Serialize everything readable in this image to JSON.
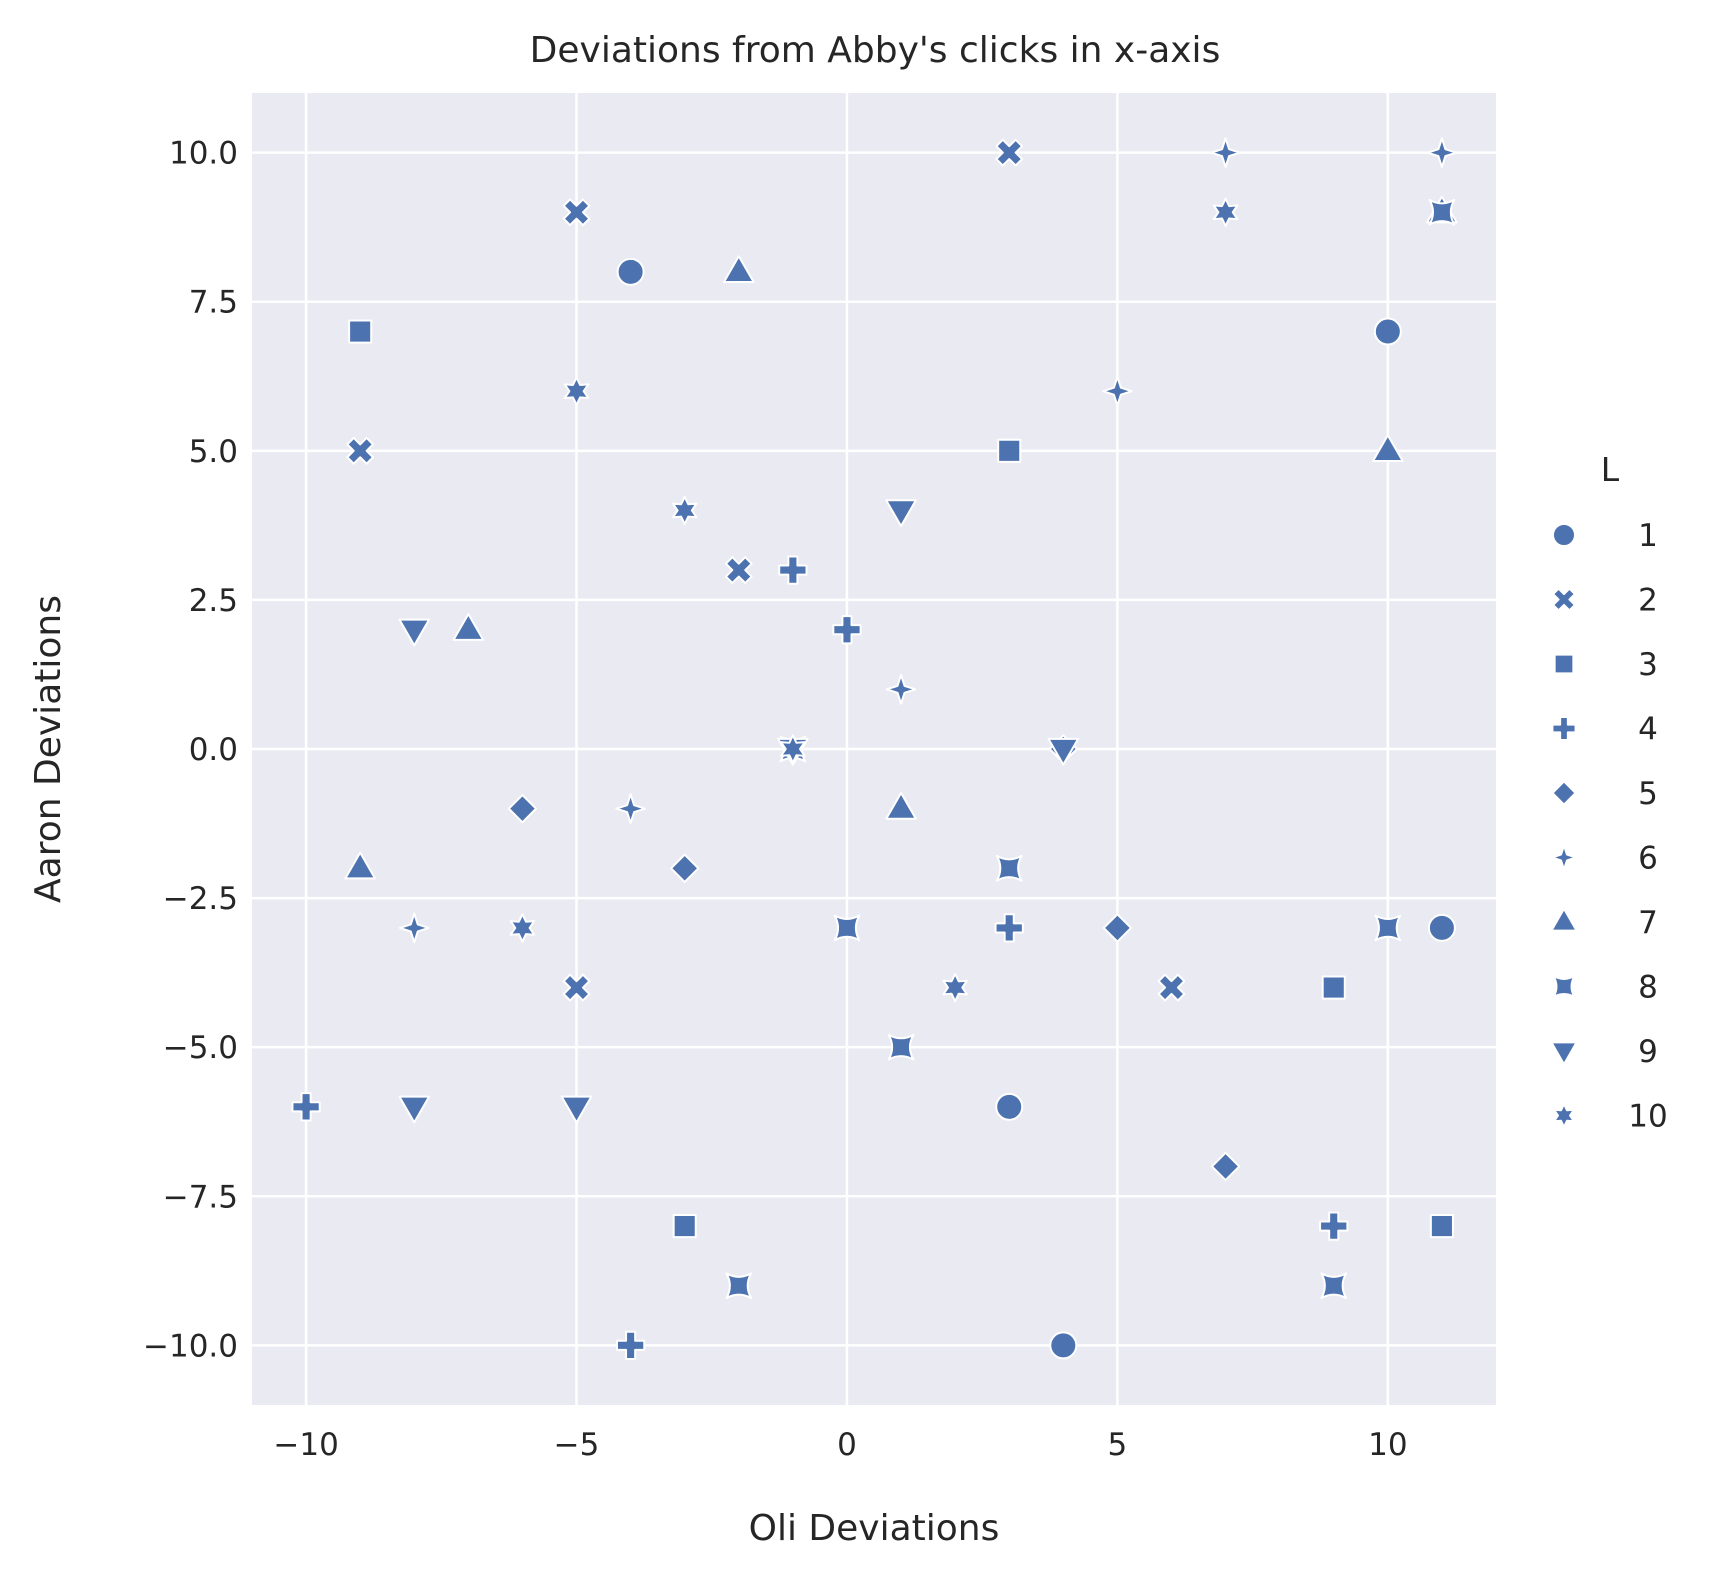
{
  "colors": {
    "background": "#eaeaf2",
    "grid": "#ffffff",
    "marker": "#4c72b0",
    "marker_edge": "#ffffff",
    "text": "#262626"
  },
  "chart_data": {
    "type": "scatter",
    "title": "Deviations from Abby's clicks in x-axis",
    "xlabel": "Oli Deviations",
    "ylabel": "Aaron Deviations",
    "xlim": [
      -11,
      12
    ],
    "ylim": [
      -11,
      11
    ],
    "xticks": [
      -10,
      -5,
      0,
      5,
      10
    ],
    "xtick_labels": [
      "−10",
      "−5",
      "0",
      "5",
      "10"
    ],
    "yticks": [
      -10,
      -7.5,
      -5,
      -2.5,
      0,
      2.5,
      5,
      7.5,
      10
    ],
    "ytick_labels": [
      "−10.0",
      "−7.5",
      "−5.0",
      "−2.5",
      "0.0",
      "2.5",
      "5.0",
      "7.5",
      "10.0"
    ],
    "grid": true,
    "legend": {
      "title": "L",
      "placement": "right",
      "entries": [
        {
          "label": "1",
          "marker": "circle"
        },
        {
          "label": "2",
          "marker": "x"
        },
        {
          "label": "3",
          "marker": "square"
        },
        {
          "label": "4",
          "marker": "plus"
        },
        {
          "label": "5",
          "marker": "diamond"
        },
        {
          "label": "6",
          "marker": "star4"
        },
        {
          "label": "7",
          "marker": "triangle-up"
        },
        {
          "label": "8",
          "marker": "hourglass"
        },
        {
          "label": "9",
          "marker": "triangle-down"
        },
        {
          "label": "10",
          "marker": "star6"
        }
      ]
    },
    "series": [
      {
        "name": "1",
        "marker": "circle",
        "points": [
          [
            -4,
            8
          ],
          [
            10,
            7
          ],
          [
            11,
            -3
          ],
          [
            3,
            -6
          ],
          [
            4,
            -10
          ]
        ]
      },
      {
        "name": "2",
        "marker": "x",
        "points": [
          [
            3,
            10
          ],
          [
            -5,
            9
          ],
          [
            -9,
            5
          ],
          [
            -2,
            3
          ],
          [
            -5,
            -4
          ],
          [
            6,
            -4
          ]
        ]
      },
      {
        "name": "3",
        "marker": "square",
        "points": [
          [
            -9,
            7
          ],
          [
            3,
            5
          ],
          [
            9,
            -4
          ],
          [
            -3,
            -8
          ],
          [
            11,
            -8
          ]
        ]
      },
      {
        "name": "4",
        "marker": "plus",
        "points": [
          [
            -1,
            3
          ],
          [
            0,
            2
          ],
          [
            3,
            -3
          ],
          [
            -10,
            -6
          ],
          [
            9,
            -8
          ],
          [
            -4,
            -10
          ]
        ]
      },
      {
        "name": "5",
        "marker": "diamond",
        "points": [
          [
            4,
            0
          ],
          [
            -6,
            -1
          ],
          [
            -3,
            -2
          ],
          [
            5,
            -3
          ],
          [
            7,
            -7
          ]
        ]
      },
      {
        "name": "6",
        "marker": "star4",
        "points": [
          [
            7,
            10
          ],
          [
            11,
            10
          ],
          [
            5,
            6
          ],
          [
            1,
            1
          ],
          [
            -4,
            -1
          ],
          [
            -8,
            -3
          ]
        ]
      },
      {
        "name": "7",
        "marker": "triangle-up",
        "points": [
          [
            11,
            9
          ],
          [
            -2,
            8
          ],
          [
            10,
            5
          ],
          [
            -7,
            2
          ],
          [
            1,
            -1
          ],
          [
            -9,
            -2
          ]
        ]
      },
      {
        "name": "8",
        "marker": "hourglass",
        "points": [
          [
            11,
            9
          ],
          [
            -1,
            0
          ],
          [
            3,
            -2
          ],
          [
            10,
            -3
          ],
          [
            0,
            -3
          ],
          [
            1,
            -5
          ],
          [
            -2,
            -9
          ],
          [
            9,
            -9
          ]
        ]
      },
      {
        "name": "9",
        "marker": "triangle-down",
        "points": [
          [
            1,
            4
          ],
          [
            -8,
            2
          ],
          [
            -1,
            0
          ],
          [
            4,
            0
          ],
          [
            -8,
            -6
          ],
          [
            -5,
            -6
          ]
        ]
      },
      {
        "name": "10",
        "marker": "star6",
        "points": [
          [
            7,
            9
          ],
          [
            -5,
            6
          ],
          [
            -3,
            4
          ],
          [
            -1,
            0
          ],
          [
            -6,
            -3
          ],
          [
            2,
            -4
          ]
        ]
      }
    ]
  }
}
